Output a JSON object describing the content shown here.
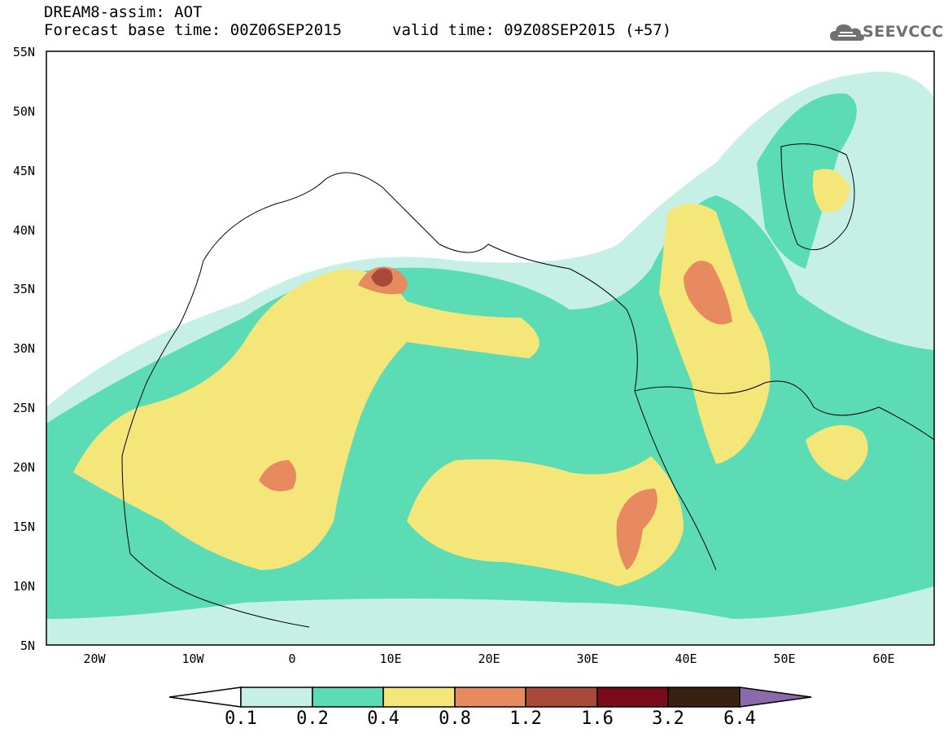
{
  "header": {
    "line1": "DREAM8-assim: AOT",
    "line2": "Forecast base time: 00Z06SEP2015",
    "line2b": "valid time: 09Z08SEP2015 (+57)"
  },
  "logo": {
    "text": "SEEVCCC",
    "icon": "cloud-icon"
  },
  "map": {
    "lat_labels": [
      "55N",
      "50N",
      "45N",
      "40N",
      "35N",
      "30N",
      "25N",
      "20N",
      "15N",
      "10N",
      "5N"
    ],
    "lon_labels": [
      "20W",
      "10W",
      "0",
      "10E",
      "20E",
      "30E",
      "40E",
      "50E",
      "60E"
    ]
  },
  "colorbar": {
    "levels": [
      "0.1",
      "0.2",
      "0.4",
      "0.8",
      "1.2",
      "1.6",
      "3.2",
      "6.4"
    ],
    "colors": [
      "#ffffff",
      "#c6f0e6",
      "#5cdcb4",
      "#f5e67a",
      "#e88a60",
      "#a84a3a",
      "#7a0a1a",
      "#3a2010",
      "#8a6aaa"
    ]
  },
  "palette": {
    "c1": "#c6f0e6",
    "c2": "#5cdcb4",
    "c3": "#f5e67a",
    "c4": "#e88a60",
    "c5": "#a84a3a"
  }
}
